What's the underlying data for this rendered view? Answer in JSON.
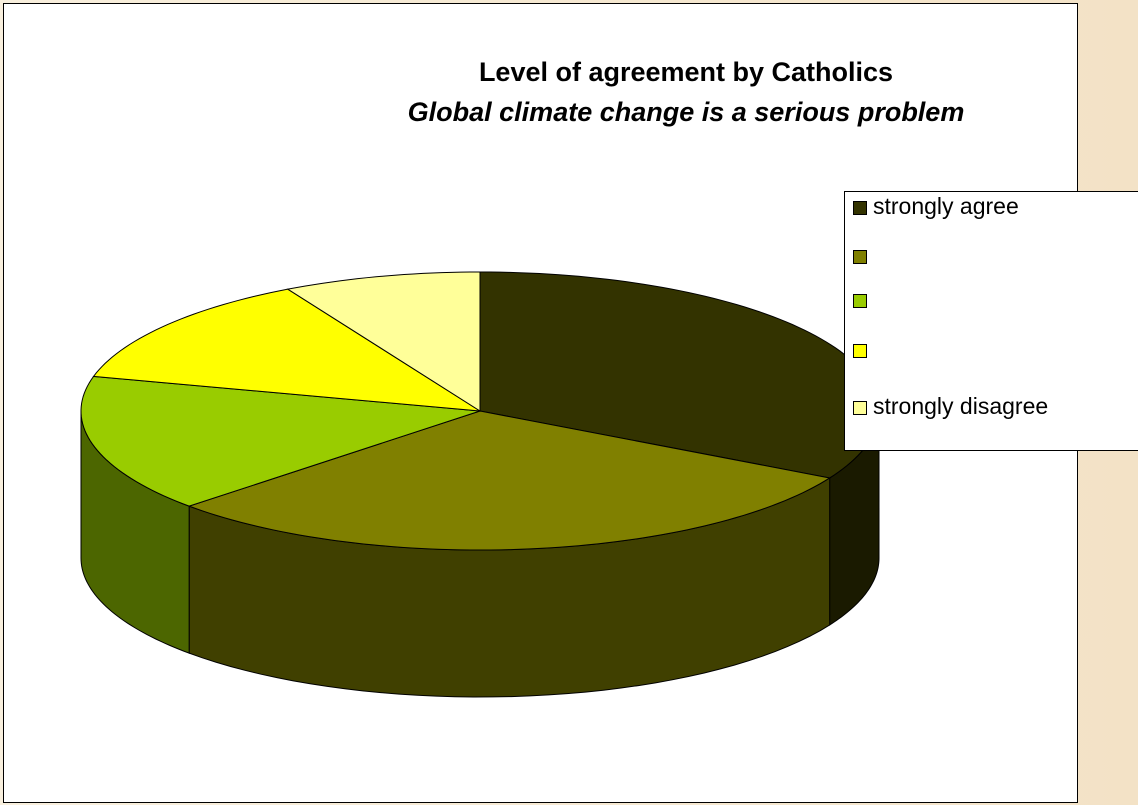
{
  "chart_data": {
    "type": "pie",
    "style": "3d",
    "title": "Level of agreement by Catholics",
    "subtitle": "Global climate change is a serious problem",
    "categories": [
      "strongly agree",
      "",
      "",
      "",
      "strongly disagree"
    ],
    "values": [
      33,
      30,
      16,
      13,
      8
    ],
    "legend_placement": "right",
    "colors": [
      "#333300",
      "#808000",
      "#99cc00",
      "#ffff00",
      "#ffff99"
    ],
    "side_colors": [
      "#1a1a00",
      "#404000",
      "#4c6600",
      "#808000",
      "#80804c"
    ]
  }
}
